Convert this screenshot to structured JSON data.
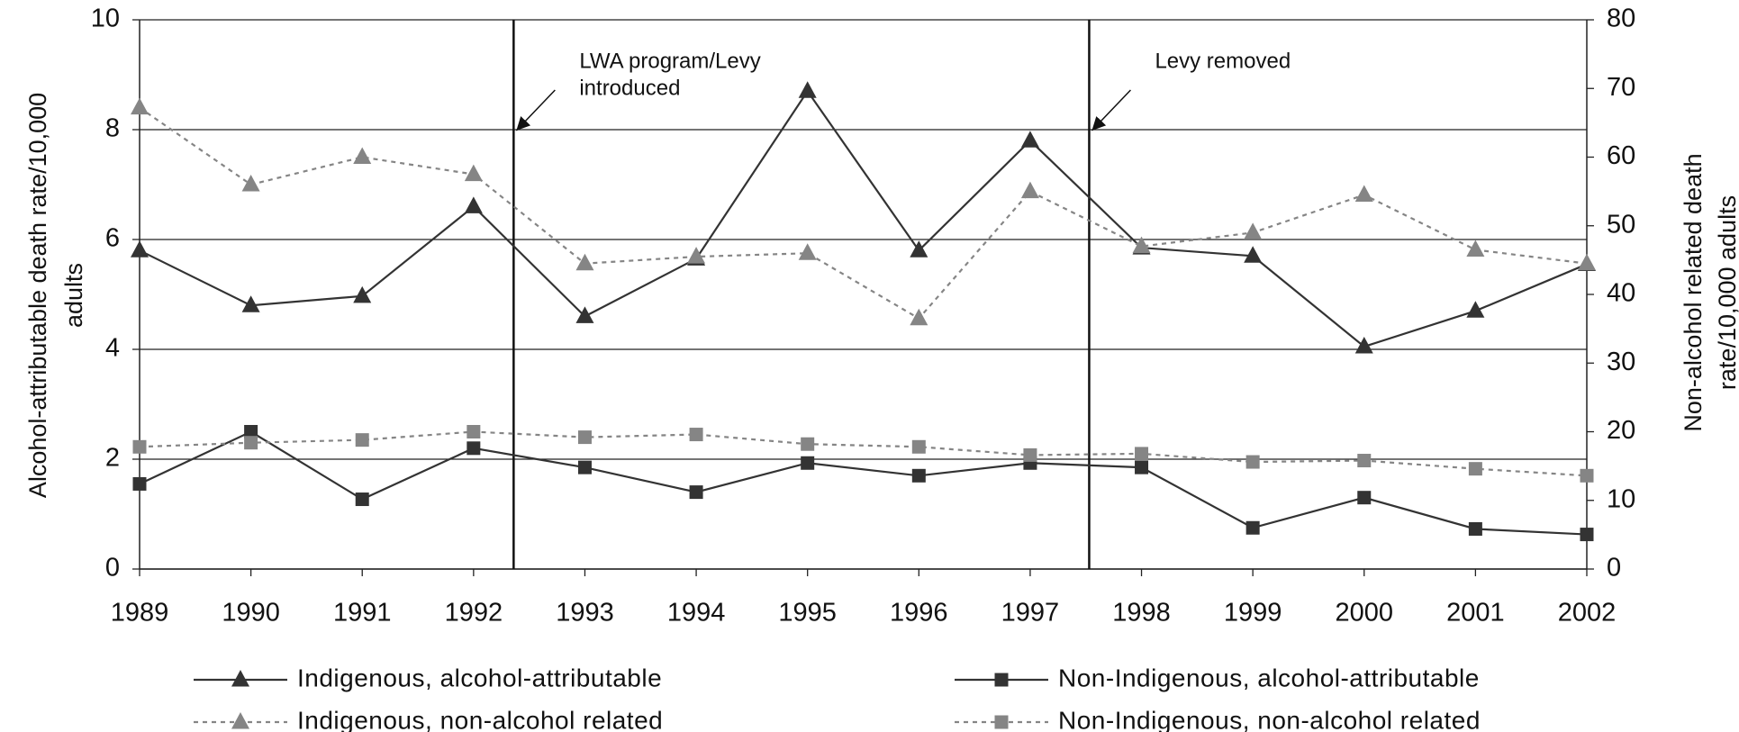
{
  "chart_data": {
    "type": "line",
    "x": [
      1989,
      1990,
      1991,
      1992,
      1993,
      1994,
      1995,
      1996,
      1997,
      1998,
      1999,
      2000,
      2001,
      2002
    ],
    "xlim": [
      1989,
      2002
    ],
    "xticks": [
      1989,
      1990,
      1991,
      1992,
      1993,
      1994,
      1995,
      1996,
      1997,
      1998,
      1999,
      2000,
      2001,
      2002
    ],
    "ylim": [
      0,
      10
    ],
    "yticks": [
      0,
      2,
      4,
      6,
      8,
      10
    ],
    "y2lim": [
      0,
      80
    ],
    "y2ticks": [
      0,
      10,
      20,
      30,
      40,
      50,
      60,
      70,
      80
    ],
    "grid": true,
    "y_label": [
      "Alcohol-attributable death rate/10,000",
      "adults"
    ],
    "y2_label": [
      "Non-alcohol related death",
      "rate/10,000 adults"
    ],
    "annotations": [
      {
        "x": 1992.36,
        "text": [
          "LWA program/Levy",
          "introduced"
        ]
      },
      {
        "x": 1997.53,
        "text": [
          "Levy removed"
        ]
      }
    ],
    "series": [
      {
        "name": "Indigenous, alcohol-attributable",
        "color": "#333333",
        "marker": "triangle",
        "dashed": false,
        "values": [
          5.8,
          4.8,
          4.97,
          6.6,
          4.6,
          5.65,
          8.7,
          5.8,
          7.8,
          5.85,
          5.7,
          4.05,
          4.7,
          5.55
        ]
      },
      {
        "name": "Non-Indigenous, alcohol-attributable",
        "color": "#333333",
        "marker": "square",
        "dashed": false,
        "values": [
          1.55,
          2.5,
          1.27,
          2.2,
          1.85,
          1.4,
          1.93,
          1.7,
          1.93,
          1.85,
          0.75,
          1.3,
          0.73,
          0.63
        ]
      },
      {
        "name": "Indigenous, non-alcohol related",
        "color": "#858585",
        "marker": "triangle",
        "dashed": true,
        "axis": "y2",
        "values": [
          67.2,
          56,
          60,
          57.5,
          44.5,
          45.5,
          46,
          36.5,
          55,
          47,
          49,
          54.5,
          46.5,
          44.5
        ]
      },
      {
        "name": "Non-Indigenous, non-alcohol related",
        "color": "#858585",
        "marker": "square",
        "dashed": true,
        "axis": "y2",
        "values": [
          17.8,
          18.4,
          18.8,
          20,
          19.2,
          19.6,
          18.2,
          17.8,
          16.6,
          16.8,
          15.6,
          15.8,
          14.6,
          13.6
        ]
      }
    ]
  }
}
